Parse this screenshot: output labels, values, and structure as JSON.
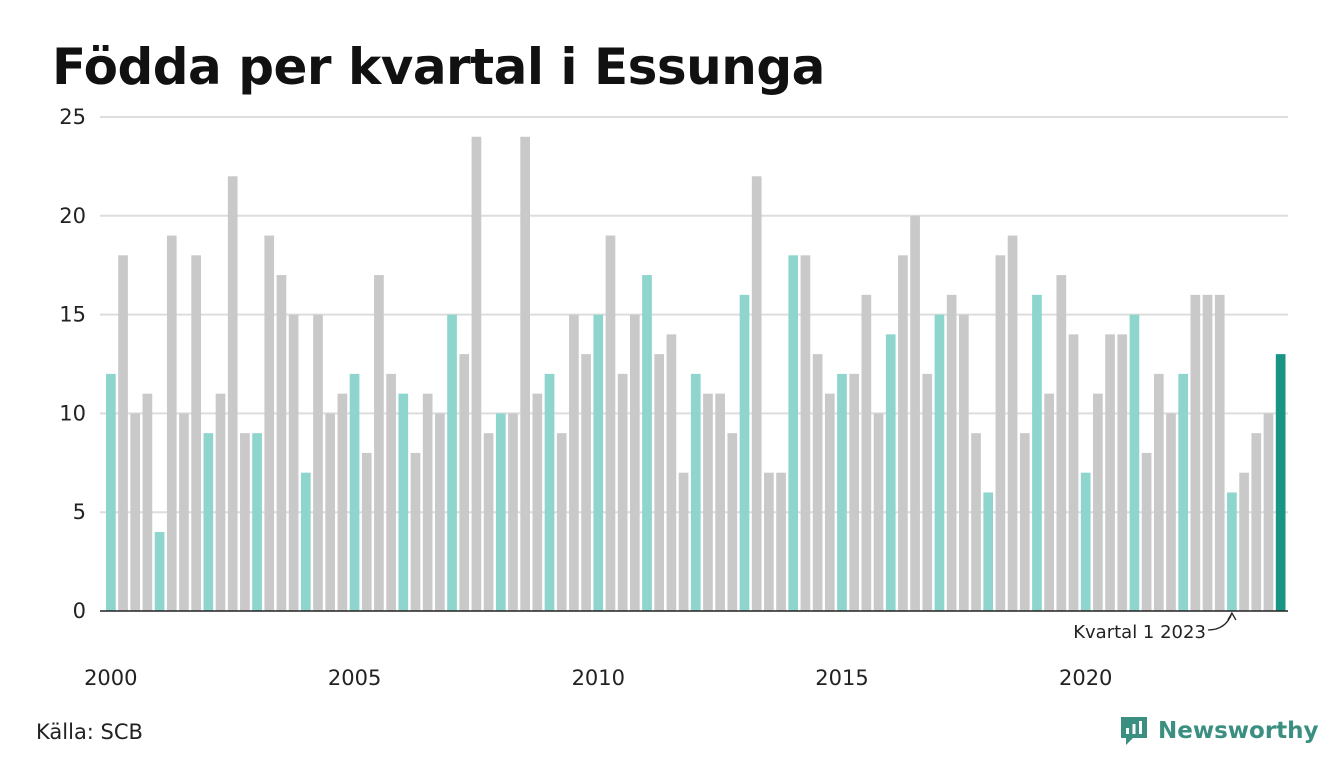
{
  "chart_data": {
    "type": "bar",
    "title": "Födda per kvartal i Essunga",
    "ylim": [
      0,
      25
    ],
    "yticks": [
      0,
      5,
      10,
      15,
      20,
      25
    ],
    "xtick_labels": [
      "2000",
      "2005",
      "2010",
      "2015",
      "2020"
    ],
    "grid": true,
    "categories": [
      "2000 Q1",
      "2000 Q2",
      "2000 Q3",
      "2000 Q4",
      "2001 Q1",
      "2001 Q2",
      "2001 Q3",
      "2001 Q4",
      "2002 Q1",
      "2002 Q2",
      "2002 Q3",
      "2002 Q4",
      "2003 Q1",
      "2003 Q2",
      "2003 Q3",
      "2003 Q4",
      "2004 Q1",
      "2004 Q2",
      "2004 Q3",
      "2004 Q4",
      "2005 Q1",
      "2005 Q2",
      "2005 Q3",
      "2005 Q4",
      "2006 Q1",
      "2006 Q2",
      "2006 Q3",
      "2006 Q4",
      "2007 Q1",
      "2007 Q2",
      "2007 Q3",
      "2007 Q4",
      "2008 Q1",
      "2008 Q2",
      "2008 Q3",
      "2008 Q4",
      "2009 Q1",
      "2009 Q2",
      "2009 Q3",
      "2009 Q4",
      "2010 Q1",
      "2010 Q2",
      "2010 Q3",
      "2010 Q4",
      "2011 Q1",
      "2011 Q2",
      "2011 Q3",
      "2011 Q4",
      "2012 Q1",
      "2012 Q2",
      "2012 Q3",
      "2012 Q4",
      "2013 Q1",
      "2013 Q2",
      "2013 Q3",
      "2013 Q4",
      "2014 Q1",
      "2014 Q2",
      "2014 Q3",
      "2014 Q4",
      "2015 Q1",
      "2015 Q2",
      "2015 Q3",
      "2015 Q4",
      "2016 Q1",
      "2016 Q2",
      "2016 Q3",
      "2016 Q4",
      "2017 Q1",
      "2017 Q2",
      "2017 Q3",
      "2017 Q4",
      "2018 Q1",
      "2018 Q2",
      "2018 Q3",
      "2018 Q4",
      "2019 Q1",
      "2019 Q2",
      "2019 Q3",
      "2019 Q4",
      "2020 Q1",
      "2020 Q2",
      "2020 Q3",
      "2020 Q4",
      "2021 Q1",
      "2021 Q2",
      "2021 Q3",
      "2021 Q4",
      "2022 Q1",
      "2022 Q2",
      "2022 Q3",
      "2022 Q4",
      "2023 Q1",
      "2023 Q2",
      "2023 Q3",
      "2023 Q4",
      "2024 Q1"
    ],
    "values": [
      12,
      18,
      10,
      11,
      4,
      19,
      10,
      18,
      9,
      11,
      22,
      9,
      9,
      19,
      17,
      15,
      7,
      15,
      10,
      11,
      12,
      8,
      17,
      12,
      11,
      8,
      11,
      10,
      15,
      13,
      24,
      9,
      10,
      10,
      24,
      11,
      12,
      9,
      15,
      13,
      15,
      19,
      12,
      15,
      17,
      13,
      14,
      7,
      12,
      11,
      11,
      9,
      16,
      22,
      7,
      7,
      18,
      18,
      13,
      11,
      12,
      12,
      16,
      10,
      14,
      18,
      20,
      12,
      15,
      16,
      15,
      9,
      6,
      18,
      19,
      9,
      16,
      11,
      17,
      14,
      7,
      11,
      14,
      14,
      15,
      8,
      12,
      10,
      12,
      16,
      16,
      16,
      6,
      7,
      9,
      10,
      13
    ],
    "annotation": "Kvartal 1 2023",
    "colors": {
      "q1": "#8dd5cd",
      "other": "#c9c9c9",
      "latest": "#1a9485",
      "grid": "#dddddd",
      "axis": "#222222"
    }
  },
  "footer": {
    "source": "Källa: SCB",
    "brand": "Newsworthy"
  }
}
